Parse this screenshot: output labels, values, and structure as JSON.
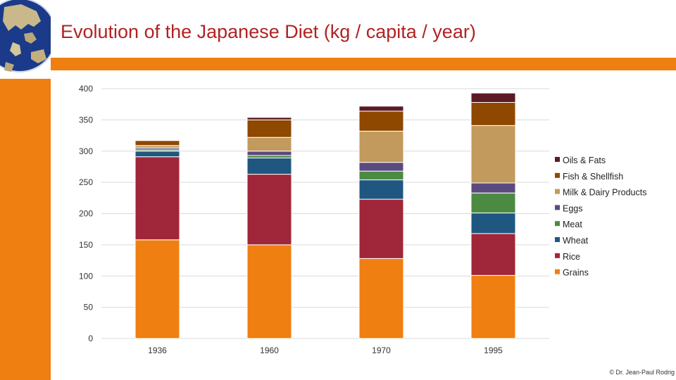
{
  "title": "Evolution of the Japanese Diet (kg / capita / year)",
  "credit": "© Dr. Jean-Paul Rodrig",
  "colors": {
    "accent": "#ef7f11",
    "title": "#b22222"
  },
  "chart_data": {
    "type": "bar",
    "stacked": true,
    "categories": [
      "1936",
      "1960",
      "1970",
      "1995"
    ],
    "ylim": [
      0,
      400
    ],
    "yticks": [
      0,
      50,
      100,
      150,
      200,
      250,
      300,
      350,
      400
    ],
    "grid": true,
    "legend_position": "right",
    "series": [
      {
        "name": "Grains",
        "color": "#ef7f11",
        "values": [
          158,
          150,
          128,
          101
        ]
      },
      {
        "name": "Rice",
        "color": "#a0263a",
        "values": [
          133,
          113,
          95,
          67
        ]
      },
      {
        "name": "Wheat",
        "color": "#1f5781",
        "values": [
          9,
          26,
          31,
          33
        ]
      },
      {
        "name": "Meat",
        "color": "#4c8a42",
        "values": [
          2,
          4,
          14,
          32
        ]
      },
      {
        "name": "Eggs",
        "color": "#5b4a7e",
        "values": [
          3,
          7,
          14,
          16
        ]
      },
      {
        "name": "Milk & Dairy Products",
        "color": "#c29a5d",
        "values": [
          4,
          22,
          50,
          92
        ]
      },
      {
        "name": "Fish & Shellfish",
        "color": "#8e4800",
        "values": [
          8,
          28,
          32,
          37
        ]
      },
      {
        "name": "Oils & Fats",
        "color": "#5c1a24",
        "values": [
          1,
          4,
          8,
          15
        ]
      }
    ]
  }
}
